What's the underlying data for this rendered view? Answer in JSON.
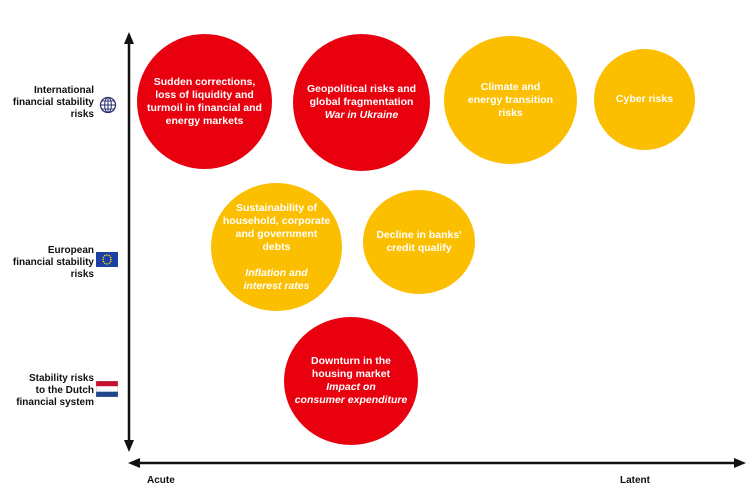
{
  "colors": {
    "high": "#e8000f",
    "medium": "#fbbf00",
    "axis": "#111111"
  },
  "icons": {
    "international": "globe-icon",
    "european": "eu-flag-icon",
    "dutch": "netherlands-flag-icon"
  },
  "rows": {
    "international": {
      "line1": "International",
      "line2": "financial stability",
      "line3": "risks"
    },
    "european": {
      "line1": "European",
      "line2": "financial stability",
      "line3": "risks"
    },
    "dutch": {
      "line1": "Stability risks",
      "line2": "to the Dutch",
      "line3": "financial system"
    }
  },
  "axis": {
    "left_label": "Acute",
    "right_label": "Latent"
  },
  "risks": {
    "corrections": {
      "severity": "high",
      "l1": "Sudden corrections,",
      "l2": "loss of liquidity and",
      "l3": "turmoil in financial and",
      "l4": "energy markets"
    },
    "geopolitical": {
      "severity": "high",
      "l1": "Geopolitical risks and",
      "l2": "global fragmentation",
      "sub": "War in Ukraine"
    },
    "climate": {
      "severity": "medium",
      "l1": "Climate and",
      "l2": "energy transition",
      "l3": "risks"
    },
    "cyber": {
      "severity": "medium",
      "l1": "Cyber risks"
    },
    "debts": {
      "severity": "medium",
      "l1": "Sustainability of",
      "l2": "household, corporate",
      "l3": "and government debts",
      "sub1": "Inflation and",
      "sub2": "interest rates"
    },
    "banks": {
      "severity": "medium",
      "l1": "Decline in banks'",
      "l2": "credit qualify"
    },
    "housing": {
      "severity": "high",
      "l1": "Downturn in the",
      "l2": "housing market",
      "sub1": "Impact on",
      "sub2": "consumer expenditure"
    }
  }
}
